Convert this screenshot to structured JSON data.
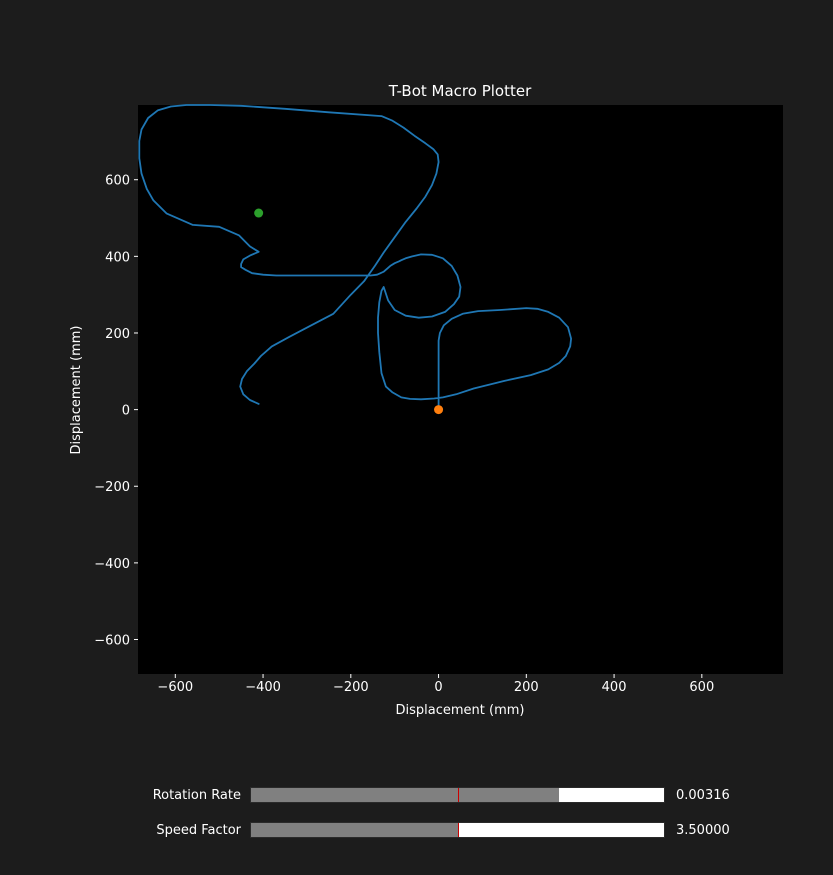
{
  "chart_data": {
    "type": "line",
    "title": "T-Bot Macro Plotter",
    "xlabel": "Displacement (mm)",
    "ylabel": "Displacement (mm)",
    "xlim": [
      -685,
      785
    ],
    "ylim": [
      -690,
      795
    ],
    "xticks": [
      -600,
      -400,
      -200,
      0,
      200,
      400,
      600
    ],
    "yticks": [
      -600,
      -400,
      -200,
      0,
      200,
      400,
      600
    ],
    "xtick_labels": [
      "−600",
      "−400",
      "−200",
      "0",
      "200",
      "400",
      "600"
    ],
    "ytick_labels": [
      "−600",
      "−400",
      "−200",
      "0",
      "200",
      "400",
      "600"
    ],
    "grid": false,
    "series": [
      {
        "color": "#1f77b4",
        "x": [
          0,
          0,
          0,
          3,
          12,
          30,
          55,
          90,
          140,
          200,
          225,
          250,
          275,
          295,
          302,
          300,
          290,
          275,
          250,
          210,
          150,
          80,
          40,
          10,
          -10,
          -40,
          -65,
          -85,
          -105,
          -120,
          -130,
          -135,
          -138,
          -138,
          -135,
          -130,
          -125,
          -115,
          -100,
          -75,
          -45,
          -15,
          15,
          35,
          47,
          50,
          43,
          30,
          10,
          -15,
          -40,
          -60,
          -75,
          -85,
          -90,
          -100,
          -110,
          -125,
          -140,
          -155,
          -175,
          -200,
          -250,
          -300,
          -370,
          -400,
          -425,
          -440,
          -450,
          -450,
          -445,
          -430,
          -410,
          -430,
          -455,
          -500,
          -560,
          -620,
          -650,
          -665,
          -677,
          -682,
          -682,
          -677,
          -662,
          -640,
          -610,
          -575,
          -520,
          -450,
          -350,
          -250,
          -130,
          -105,
          -80,
          -55,
          -30,
          -12,
          -2,
          0,
          -5,
          -15,
          -30,
          -50,
          -75,
          -100,
          -125,
          -145,
          -170,
          -200,
          -240,
          -290,
          -340,
          -380,
          -405,
          -420,
          -437,
          -448,
          -452,
          -445,
          -430,
          -410
        ],
        "y": [
          0,
          50,
          180,
          200,
          220,
          237,
          250,
          257,
          260,
          265,
          263,
          255,
          240,
          215,
          185,
          165,
          140,
          122,
          105,
          90,
          75,
          55,
          40,
          32,
          29,
          27,
          28,
          32,
          45,
          60,
          95,
          150,
          200,
          240,
          280,
          310,
          320,
          285,
          260,
          245,
          240,
          243,
          255,
          275,
          295,
          320,
          350,
          375,
          395,
          404,
          405,
          400,
          395,
          390,
          387,
          382,
          375,
          360,
          352,
          350,
          350,
          350,
          350,
          350,
          350,
          352,
          356,
          365,
          372,
          380,
          392,
          402,
          412,
          426,
          455,
          477,
          482,
          512,
          546,
          576,
          616,
          656,
          701,
          731,
          761,
          781,
          791,
          795,
          795,
          793,
          785,
          776,
          766,
          754,
          736,
          715,
          695,
          680,
          666,
          646,
          616,
          586,
          556,
          525,
          490,
          450,
          410,
          375,
          335,
          300,
          250,
          220,
          190,
          165,
          140,
          120,
          100,
          80,
          60,
          40,
          25,
          15
        ]
      }
    ],
    "points": [
      {
        "x": 0,
        "y": 0,
        "color": "#ff7f0e"
      },
      {
        "x": -410,
        "y": 513,
        "color": "#2ca02c"
      }
    ]
  },
  "sliders": [
    {
      "label": "Rotation Rate",
      "value_text": "0.00316",
      "fill_fraction": 0.746,
      "init_fraction": 0.5
    },
    {
      "label": "Speed Factor",
      "value_text": "3.50000",
      "fill_fraction": 0.5,
      "init_fraction": 0.5
    }
  ]
}
